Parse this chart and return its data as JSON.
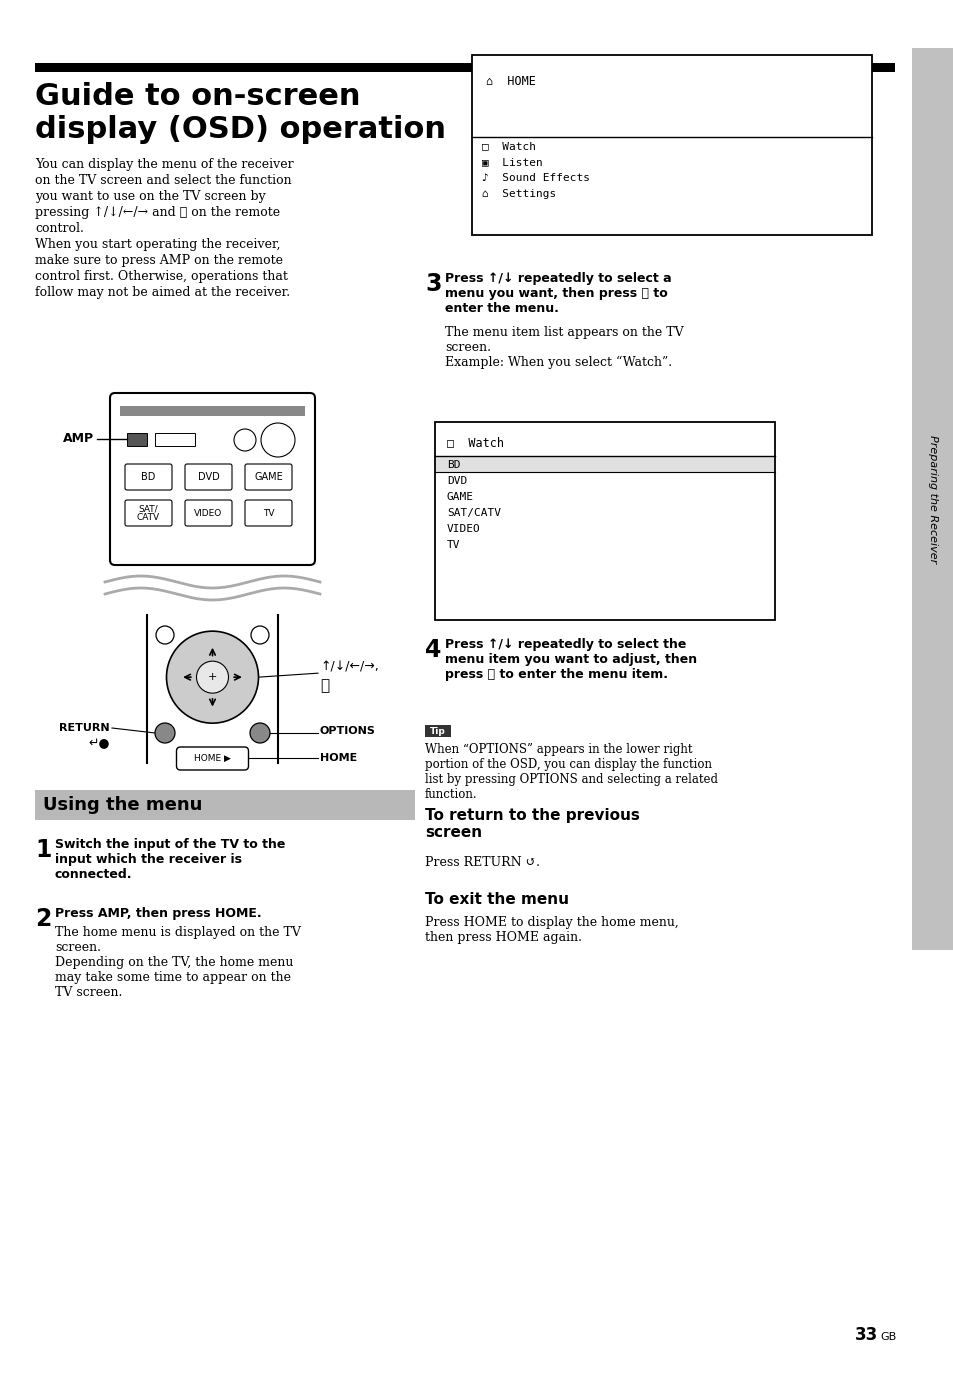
{
  "bg_color": "#ffffff",
  "sidebar_color": "#c0c0c0",
  "sidebar_text": "Preparing the Receiver",
  "header_bar_color": "#000000",
  "section_bg": "#b8b8b8",
  "title_line1": "Guide to on-screen",
  "title_line2": "display (OSD) operation",
  "intro_lines": [
    "You can display the menu of the receiver",
    "on the TV screen and select the function",
    "you want to use on the TV screen by",
    "pressing ↑/↓/←/→ and ⓧ on the remote",
    "control.",
    "When you start operating the receiver,",
    "make sure to press AMP on the remote",
    "control first. Otherwise, operations that",
    "follow may not be aimed at the receiver."
  ],
  "osd1_home": "⌂  HOME",
  "osd1_items": [
    "□  Watch",
    "▣  Listen",
    "♪  Sound Effects",
    "⌂  Settings"
  ],
  "osd2_header": "□  Watch",
  "osd2_items": [
    "BD",
    "DVD",
    "GAME",
    "SAT/CATV",
    "VIDEO",
    "TV"
  ],
  "step1_text": "Switch the input of the TV to the\ninput which the receiver is\nconnected.",
  "step2_bold": "Press AMP, then press HOME.",
  "step2_body": "The home menu is displayed on the TV\nscreen.\nDepending on the TV, the home menu\nmay take some time to appear on the\nTV screen.",
  "step3_bold": "Press ↑/↓ repeatedly to select a\nmenu you want, then press ⓧ to\nenter the menu.",
  "step3_body": "The menu item list appears on the TV\nscreen.\nExample: When you select “Watch”.",
  "step4_bold": "Press ↑/↓ repeatedly to select the\nmenu item you want to adjust, then\npress ⓧ to enter the menu item.",
  "tip_text": "When “OPTIONS” appears in the lower right\nportion of the OSD, you can display the function\nlist by pressing OPTIONS and selecting a related\nfunction.",
  "return_title": "To return to the previous\nscreen",
  "return_body": "Press RETURN ↺.",
  "exit_title": "To exit the menu",
  "exit_body": "Press HOME to display the home menu,\nthen press HOME again.",
  "page_num": "33",
  "page_suffix": "GB"
}
